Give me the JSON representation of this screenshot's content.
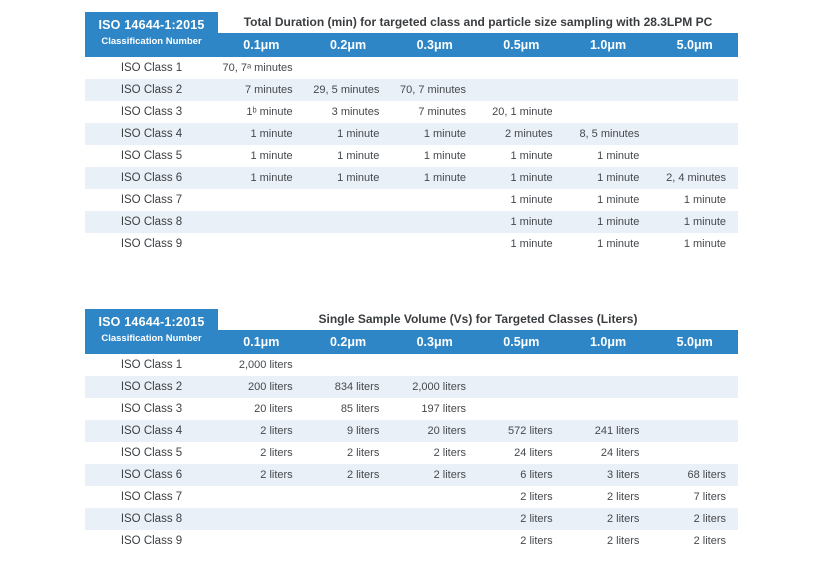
{
  "colors": {
    "header_blue": "#2E86C6",
    "stripe_blue": "#EAF0F7",
    "body_text": "#45494D",
    "title_text": "#3A3D40"
  },
  "tables": [
    {
      "corner_line1": "ISO 14644-1:2015",
      "corner_line2": "Classification Number",
      "title": "Total Duration (min) for targeted class and particle size sampling with 28.3LPM PC",
      "columns": [
        "0.1μm",
        "0.2μm",
        "0.3μm",
        "0.5μm",
        "1.0μm",
        "5.0μm"
      ],
      "rows": [
        {
          "label": "ISO Class 1",
          "values": [
            "70, 7ᵃ minutes",
            "",
            "",
            "",
            "",
            ""
          ]
        },
        {
          "label": "ISO Class 2",
          "values": [
            "7 minutes",
            "29, 5 minutes",
            "70, 7 minutes",
            "",
            "",
            ""
          ]
        },
        {
          "label": "ISO Class 3",
          "values": [
            "1ᵇ minute",
            "3 minutes",
            "7 minutes",
            "20, 1 minute",
            "",
            ""
          ]
        },
        {
          "label": "ISO Class 4",
          "values": [
            "1 minute",
            "1 minute",
            "1 minute",
            "2 minutes",
            "8, 5 minutes",
            ""
          ]
        },
        {
          "label": "ISO Class 5",
          "values": [
            "1 minute",
            "1 minute",
            "1 minute",
            "1 minute",
            "1 minute",
            ""
          ]
        },
        {
          "label": "ISO Class 6",
          "values": [
            "1 minute",
            "1 minute",
            "1 minute",
            "1 minute",
            "1 minute",
            "2, 4 minutes"
          ]
        },
        {
          "label": "ISO Class 7",
          "values": [
            "",
            "",
            "",
            "1 minute",
            "1 minute",
            "1 minute"
          ]
        },
        {
          "label": "ISO Class 8",
          "values": [
            "",
            "",
            "",
            "1 minute",
            "1 minute",
            "1 minute"
          ]
        },
        {
          "label": "ISO Class 9",
          "values": [
            "",
            "",
            "",
            "1 minute",
            "1 minute",
            "1 minute"
          ]
        }
      ]
    },
    {
      "corner_line1": "ISO 14644-1:2015",
      "corner_line2": "Classification Number",
      "title": "Single Sample Volume (Vs) for Targeted Classes (Liters)",
      "columns": [
        "0.1μm",
        "0.2μm",
        "0.3μm",
        "0.5μm",
        "1.0μm",
        "5.0μm"
      ],
      "rows": [
        {
          "label": "ISO Class 1",
          "values": [
            "2,000 liters",
            "",
            "",
            "",
            "",
            ""
          ]
        },
        {
          "label": "ISO Class 2",
          "values": [
            "200 liters",
            "834 liters",
            "2,000 liters",
            "",
            "",
            ""
          ]
        },
        {
          "label": "ISO Class 3",
          "values": [
            "20 liters",
            "85 liters",
            "197 liters",
            "",
            "",
            ""
          ]
        },
        {
          "label": "ISO Class 4",
          "values": [
            "2 liters",
            "9 liters",
            "20 liters",
            "572 liters",
            "241 liters",
            ""
          ]
        },
        {
          "label": "ISO Class 5",
          "values": [
            "2 liters",
            "2 liters",
            "2 liters",
            "24 liters",
            "24 liters",
            ""
          ]
        },
        {
          "label": "ISO Class 6",
          "values": [
            "2 liters",
            "2 liters",
            "2 liters",
            "6 liters",
            "3 liters",
            "68 liters"
          ]
        },
        {
          "label": "ISO Class 7",
          "values": [
            "",
            "",
            "",
            "2 liters",
            "2 liters",
            "7 liters"
          ]
        },
        {
          "label": "ISO Class 8",
          "values": [
            "",
            "",
            "",
            "2 liters",
            "2 liters",
            "2 liters"
          ]
        },
        {
          "label": "ISO Class 9",
          "values": [
            "",
            "",
            "",
            "2 liters",
            "2 liters",
            "2 liters"
          ]
        }
      ]
    }
  ]
}
